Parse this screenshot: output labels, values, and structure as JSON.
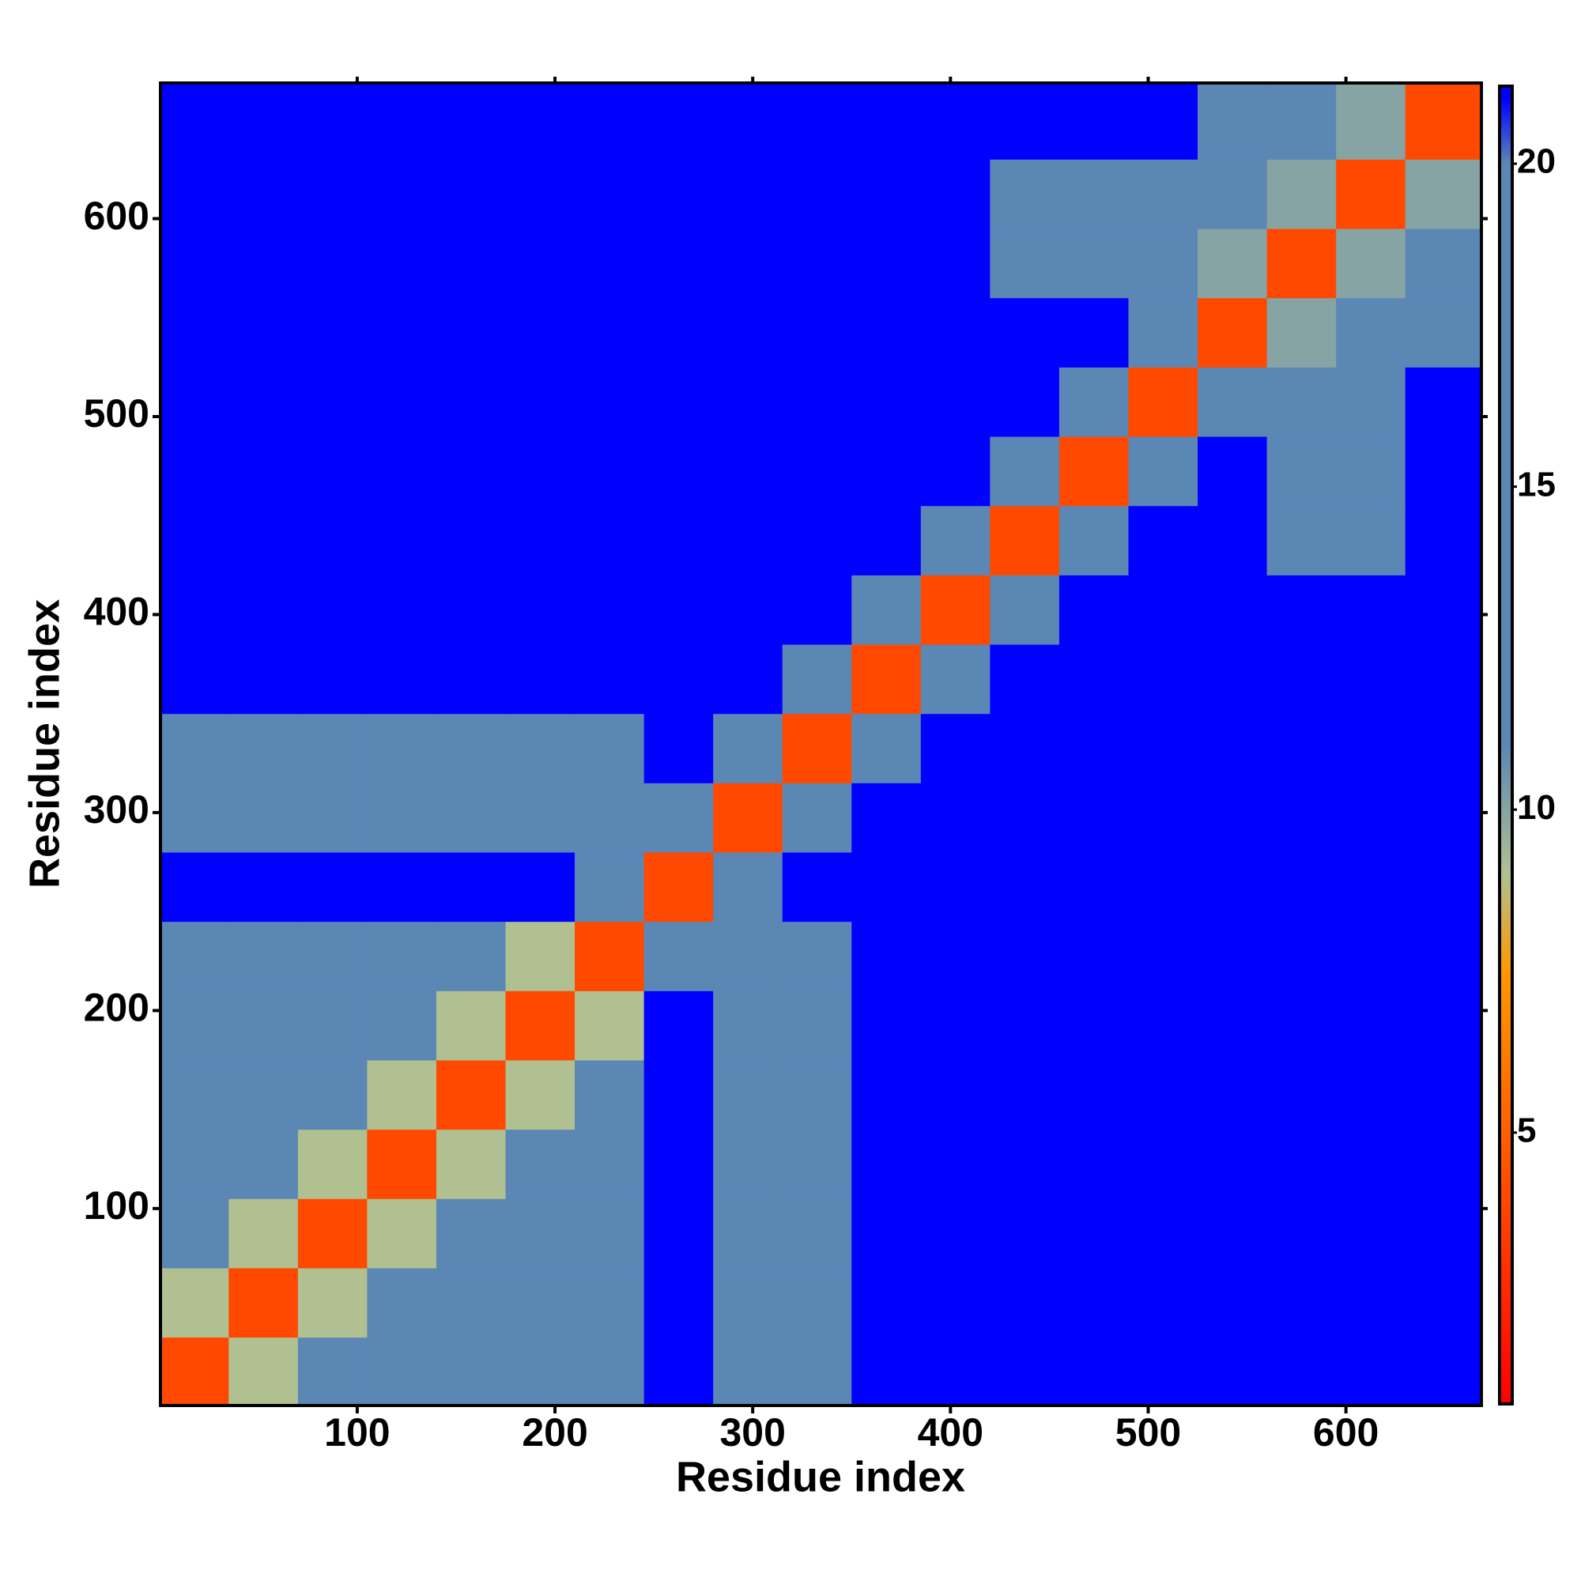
{
  "chart_data": {
    "type": "heatmap",
    "x_label": "Residue index",
    "y_label": "Residue index",
    "bins": [
      0.5,
      35,
      70,
      105,
      140,
      175,
      210,
      245,
      280,
      315,
      350,
      385,
      420,
      455,
      490,
      525,
      560,
      595,
      630,
      668.5
    ],
    "xlim": [
      0.5,
      668.5
    ],
    "ylim": [
      0.5,
      668.5
    ],
    "xticks": [
      100,
      200,
      300,
      400,
      500,
      600
    ],
    "yticks": [
      100,
      200,
      300,
      400,
      500,
      600
    ],
    "zlim": [
      0.8,
      21.2
    ],
    "zticks": [
      5,
      10,
      15,
      20
    ],
    "colorscale": [
      [
        0.8,
        "#ff0000"
      ],
      [
        7.5,
        "#ff9900"
      ],
      [
        9,
        "#b0c090"
      ],
      [
        11,
        "#5b87b5"
      ],
      [
        20,
        "#5b87b5"
      ],
      [
        21,
        "#0000ff"
      ]
    ],
    "z": [
      [
        4,
        9,
        13,
        13,
        13,
        13,
        13,
        21,
        20,
        20,
        21,
        21,
        21,
        21,
        21,
        21,
        21,
        21,
        21
      ],
      [
        9,
        4,
        9,
        13,
        13,
        13,
        13,
        21,
        20,
        20,
        21,
        21,
        21,
        21,
        21,
        21,
        21,
        21,
        21
      ],
      [
        13,
        9,
        4,
        9,
        13,
        13,
        13,
        21,
        20,
        20,
        21,
        21,
        21,
        21,
        21,
        21,
        21,
        21,
        21
      ],
      [
        13,
        13,
        9,
        4,
        9,
        13,
        13,
        21,
        20,
        20,
        21,
        21,
        21,
        21,
        21,
        21,
        21,
        21,
        21
      ],
      [
        13,
        13,
        13,
        9,
        4,
        9,
        13,
        21,
        20,
        20,
        21,
        21,
        21,
        21,
        21,
        21,
        21,
        21,
        21
      ],
      [
        13,
        13,
        13,
        13,
        9,
        4,
        9,
        21,
        20,
        20,
        21,
        21,
        21,
        21,
        21,
        21,
        21,
        21,
        21
      ],
      [
        13,
        13,
        13,
        13,
        13,
        9,
        4,
        17,
        20,
        20,
        21,
        21,
        21,
        21,
        21,
        21,
        21,
        21,
        21
      ],
      [
        21,
        21,
        21,
        21,
        21,
        21,
        17,
        4,
        17,
        21,
        21,
        21,
        21,
        21,
        21,
        21,
        21,
        21,
        21
      ],
      [
        20,
        20,
        20,
        20,
        20,
        20,
        20,
        17,
        4,
        17,
        21,
        21,
        21,
        21,
        21,
        21,
        21,
        21,
        21
      ],
      [
        20,
        20,
        20,
        20,
        20,
        20,
        20,
        21,
        17,
        4,
        17,
        21,
        21,
        21,
        21,
        21,
        21,
        21,
        21
      ],
      [
        21,
        21,
        21,
        21,
        21,
        21,
        21,
        21,
        21,
        17,
        4,
        17,
        21,
        21,
        21,
        21,
        21,
        21,
        21
      ],
      [
        21,
        21,
        21,
        21,
        21,
        21,
        21,
        21,
        21,
        21,
        17,
        4,
        17,
        21,
        21,
        21,
        21,
        21,
        21
      ],
      [
        21,
        21,
        21,
        21,
        21,
        21,
        21,
        21,
        21,
        21,
        21,
        17,
        4,
        17,
        21,
        21,
        19,
        19,
        21
      ],
      [
        21,
        21,
        21,
        21,
        21,
        21,
        21,
        21,
        21,
        21,
        21,
        21,
        17,
        4,
        17,
        21,
        19,
        19,
        21
      ],
      [
        21,
        21,
        21,
        21,
        21,
        21,
        21,
        21,
        21,
        21,
        21,
        21,
        21,
        17,
        4,
        17,
        15,
        15,
        21
      ],
      [
        21,
        21,
        21,
        21,
        21,
        21,
        21,
        21,
        21,
        21,
        21,
        21,
        21,
        21,
        17,
        4,
        10,
        14,
        14
      ],
      [
        21,
        21,
        21,
        21,
        21,
        21,
        21,
        21,
        21,
        21,
        21,
        21,
        19,
        19,
        15,
        10,
        4,
        10,
        14
      ],
      [
        21,
        21,
        21,
        21,
        21,
        21,
        21,
        21,
        21,
        21,
        21,
        21,
        19,
        19,
        15,
        14,
        10,
        4,
        10
      ],
      [
        21,
        21,
        21,
        21,
        21,
        21,
        21,
        21,
        21,
        21,
        21,
        21,
        21,
        21,
        21,
        14,
        14,
        10,
        4
      ]
    ]
  }
}
